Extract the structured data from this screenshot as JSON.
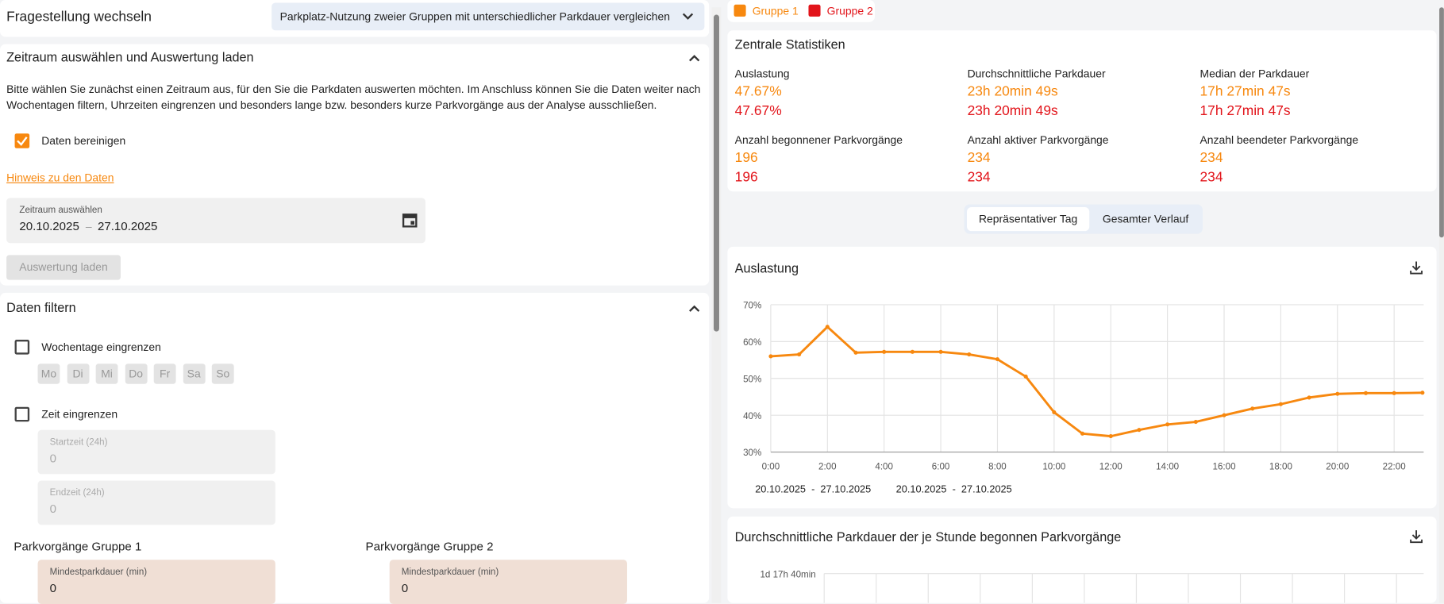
{
  "header": {
    "title": "Fragestellung wechseln",
    "question": "Parkplatz-Nutzung zweier Gruppen mit unterschiedlicher Parkdauer vergleichen"
  },
  "zeitraum": {
    "title": "Zeitraum auswählen und Auswertung laden",
    "description": "Bitte wählen Sie zunächst einen Zeitraum aus, für den Sie die Parkdaten auswerten möchten. Im Anschluss können Sie die Daten weiter nach Wochentagen filtern, Uhrzeiten eingrenzen und besonders lange bzw. besonders kurze Parkvorgänge aus der Analyse ausschließen.",
    "clean_label": "Daten bereinigen",
    "hint": "Hinweis zu den Daten",
    "range_label": "Zeitraum auswählen",
    "start": "20.10.2025",
    "separator": "–",
    "end": "27.10.2025",
    "load": "Auswertung laden"
  },
  "filter": {
    "title": "Daten filtern",
    "weekdays_label": "Wochentage eingrenzen",
    "weekdays": [
      "Mo",
      "Di",
      "Mi",
      "Do",
      "Fr",
      "Sa",
      "So"
    ],
    "time_label": "Zeit eingrenzen",
    "start_label": "Startzeit (24h)",
    "start_value": "0",
    "end_label": "Endzeit (24h)",
    "end_value": "0",
    "groups": [
      {
        "title": "Parkvorgänge Gruppe 1",
        "min_label": "Mindestparkdauer (min)",
        "min_value": "0"
      },
      {
        "title": "Parkvorgänge Gruppe 2",
        "min_label": "Mindestparkdauer (min)",
        "min_value": "0"
      }
    ]
  },
  "legend": [
    {
      "name": "Gruppe 1",
      "color": "#f7880f"
    },
    {
      "name": "Gruppe 2",
      "color": "#e2141a"
    }
  ],
  "stats": {
    "title": "Zentrale Statistiken",
    "items": [
      {
        "label": "Auslastung",
        "values": [
          "47.67%",
          "47.67%"
        ]
      },
      {
        "label": "Durchschnittliche Parkdauer",
        "values": [
          "23h 20min 49s",
          "23h 20min 49s"
        ]
      },
      {
        "label": "Median der Parkdauer",
        "values": [
          "17h 27min 47s",
          "17h 27min 47s"
        ]
      },
      {
        "label": "Anzahl begonnener Parkvorgänge",
        "values": [
          "196",
          "196"
        ]
      },
      {
        "label": "Anzahl aktiver Parkvorgänge",
        "values": [
          "234",
          "234"
        ]
      },
      {
        "label": "Anzahl beendeter Parkvorgänge",
        "values": [
          "234",
          "234"
        ]
      }
    ]
  },
  "tabs": [
    "Repräsentativer Tag",
    "Gesamter Verlauf"
  ],
  "chart_data": {
    "type": "line",
    "title": "Auslastung",
    "categories": [
      "0:00",
      null,
      "2:00",
      null,
      "4:00",
      null,
      "6:00",
      null,
      "8:00",
      null,
      "10:00",
      null,
      "12:00",
      null,
      "14:00",
      null,
      "16:00",
      null,
      "18:00",
      null,
      "20:00",
      null,
      "22:00",
      null
    ],
    "series": [
      {
        "name": "Gruppe 1",
        "color": "#f7880f",
        "values": [
          56.0,
          56.5,
          64.0,
          57.0,
          57.2,
          57.2,
          57.2,
          56.5,
          55.2,
          50.5,
          40.8,
          35.0,
          34.3,
          36.0,
          37.5,
          38.2,
          40.0,
          41.8,
          43.0,
          44.8,
          45.8,
          46.0,
          46.0,
          46.1
        ]
      }
    ],
    "ylim": [
      30,
      70
    ],
    "yticks": [
      {
        "value": 30,
        "label": "30%"
      },
      {
        "value": 40,
        "label": "40%"
      },
      {
        "value": 50,
        "label": "50%"
      },
      {
        "value": 60,
        "label": "60%"
      },
      {
        "value": 70,
        "label": "70%"
      }
    ],
    "grid": true,
    "ranges": [
      "20.10.2025  -  27.10.2025",
      "20.10.2025  -  27.10.2025"
    ]
  },
  "chart2": {
    "title": "Durchschnittliche Parkdauer der je Stunde begonnen Parkvorgänge",
    "ytick": "1d 17h 40min"
  }
}
